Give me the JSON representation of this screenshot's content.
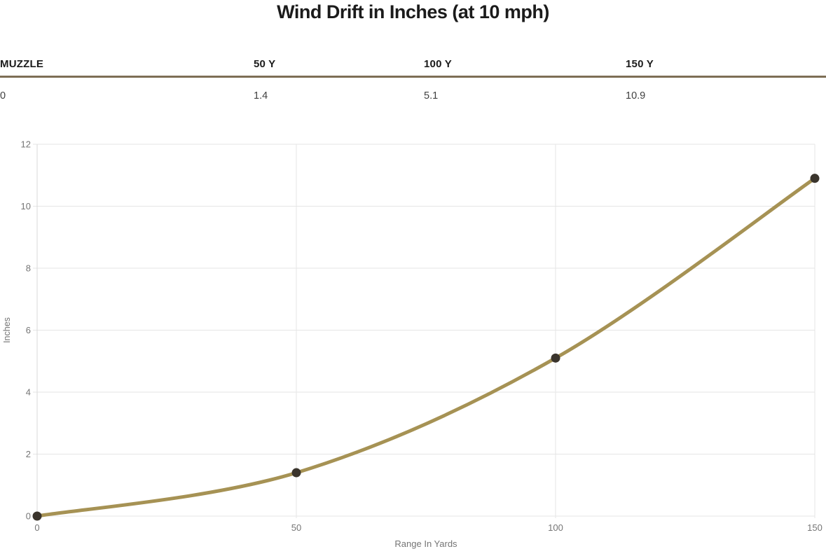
{
  "title": "Wind Drift in Inches (at 10 mph)",
  "table": {
    "columns": [
      "MUZZLE",
      "50 Y",
      "100 Y",
      "150 Y"
    ],
    "rows": [
      [
        "0",
        "1.4",
        "5.1",
        "10.9"
      ]
    ]
  },
  "chart_data": {
    "type": "line",
    "title": "Wind Drift in Inches (at 10 mph)",
    "x": [
      0,
      50,
      100,
      150
    ],
    "values": [
      0,
      1.4,
      5.1,
      10.9
    ],
    "x_tick_labels": [
      "0",
      "50",
      "100",
      "150"
    ],
    "y_ticks": [
      0,
      2,
      4,
      6,
      8,
      10,
      12
    ],
    "xlabel": "Range In Yards",
    "ylabel": "Inches",
    "xlim": [
      0,
      150
    ],
    "ylim": [
      0,
      12
    ],
    "grid": true,
    "legend_position": "none",
    "colors": {
      "line": "#a69254",
      "point": "#3a342c",
      "grid": "#e5e5e5",
      "axis": "#d9d9d9",
      "tick_text": "#757575"
    }
  }
}
